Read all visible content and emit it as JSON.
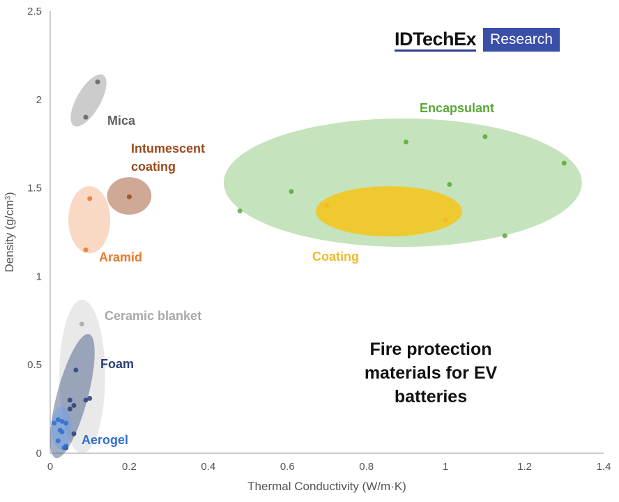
{
  "chart_data": {
    "type": "scatter",
    "title": "Fire protection materials for EV batteries",
    "xlabel": "Thermal Conductivity (W/m·K)",
    "ylabel": "Density (g/cm³)",
    "xlim": [
      0,
      1.4
    ],
    "ylim": [
      0,
      2.5
    ],
    "xticks": [
      "0",
      "0.2",
      "0.4",
      "0.6",
      "0.8",
      "1",
      "1.2",
      "1.4"
    ],
    "yticks": [
      "0",
      "0.5",
      "1",
      "1.5",
      "2",
      "2.5"
    ],
    "grid": false,
    "logo": {
      "brand": "IDTechEx",
      "tag": "Research"
    },
    "series": [
      {
        "name": "Mica",
        "color": "#5f5f5f",
        "fill": "#9a9a9a",
        "region": {
          "cx": 0.097,
          "cy": 1.995,
          "rx": 0.03,
          "ry": 0.166,
          "angle": 30
        },
        "points": [
          [
            0.09,
            1.9
          ],
          [
            0.12,
            2.1
          ]
        ]
      },
      {
        "name": "Intumescent coating",
        "color": "#9c4a1c",
        "fill": "#a0522d",
        "region": {
          "cx": 0.2,
          "cy": 1.455,
          "rx": 0.056,
          "ry": 0.106,
          "angle": 0
        },
        "points": [
          [
            0.2,
            1.45
          ]
        ]
      },
      {
        "name": "Aramid",
        "color": "#e8782a",
        "fill": "#f5b48a",
        "region": {
          "cx": 0.099,
          "cy": 1.32,
          "rx": 0.053,
          "ry": 0.19,
          "angle": 0
        },
        "points": [
          [
            0.1,
            1.44
          ],
          [
            0.09,
            1.15
          ]
        ]
      },
      {
        "name": "Encapsulant",
        "color": "#5aa83a",
        "fill": "#8cc87a",
        "region": {
          "cx": 0.892,
          "cy": 1.53,
          "rx": 0.453,
          "ry": 0.363,
          "angle": 0
        },
        "points": [
          [
            0.48,
            1.37
          ],
          [
            0.61,
            1.48
          ],
          [
            0.9,
            1.76
          ],
          [
            1.01,
            1.52
          ],
          [
            1.1,
            1.79
          ],
          [
            1.15,
            1.23
          ],
          [
            1.3,
            1.64
          ]
        ]
      },
      {
        "name": "Coating",
        "color": "#f2b92a",
        "fill": "#f5c518",
        "region": {
          "cx": 0.857,
          "cy": 1.368,
          "rx": 0.185,
          "ry": 0.142,
          "angle": 0
        },
        "points": [
          [
            0.7,
            1.4
          ],
          [
            1.0,
            1.32
          ]
        ]
      },
      {
        "name": "Ceramic blanket",
        "color": "#a8a8a8",
        "fill": "#d4d4d4",
        "region": {
          "cx": 0.081,
          "cy": 0.434,
          "rx": 0.058,
          "ry": 0.434,
          "angle": 0
        },
        "points": [
          [
            0.08,
            0.73
          ]
        ]
      },
      {
        "name": "Foam",
        "color": "#2b3f78",
        "fill": "#4a5f8c",
        "region": {
          "cx": 0.056,
          "cy": 0.323,
          "rx": 0.039,
          "ry": 0.363,
          "angle": 15
        },
        "points": [
          [
            0.065,
            0.47
          ],
          [
            0.1,
            0.31
          ],
          [
            0.09,
            0.3
          ],
          [
            0.05,
            0.3
          ],
          [
            0.05,
            0.25
          ],
          [
            0.06,
            0.27
          ],
          [
            0.04,
            0.03
          ],
          [
            0.06,
            0.11
          ]
        ]
      },
      {
        "name": "Aerogel",
        "color": "#2f6fd0",
        "fill": "#6f9fe8",
        "region": {
          "cx": 0.028,
          "cy": 0.142,
          "rx": 0.025,
          "ry": 0.12,
          "angle": 0
        },
        "points": [
          [
            0.01,
            0.17
          ],
          [
            0.02,
            0.19
          ],
          [
            0.03,
            0.18
          ],
          [
            0.025,
            0.13
          ],
          [
            0.03,
            0.12
          ],
          [
            0.04,
            0.17
          ],
          [
            0.02,
            0.07
          ],
          [
            0.04,
            0.04
          ],
          [
            0.035,
            0.03
          ]
        ]
      }
    ]
  }
}
